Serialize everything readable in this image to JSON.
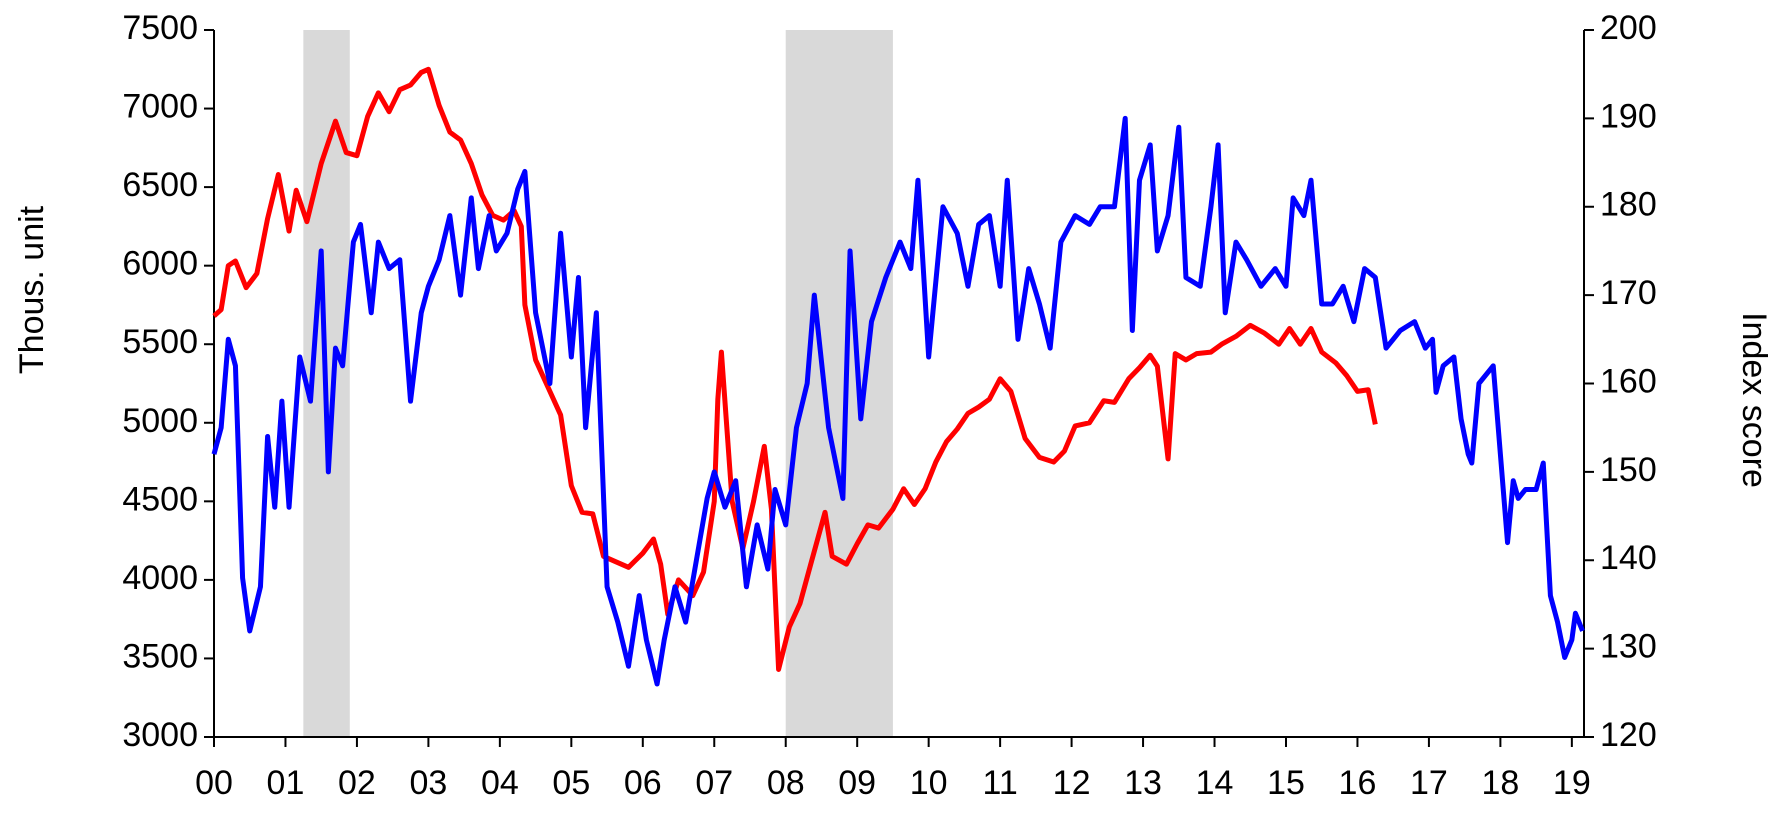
{
  "chart_data": {
    "type": "line",
    "ylabel": "Thous. unit",
    "y2label": "Index score",
    "xlim": [
      0,
      19.17
    ],
    "xticks": [
      {
        "value": 0,
        "label": "00"
      },
      {
        "value": 1,
        "label": "01"
      },
      {
        "value": 2,
        "label": "02"
      },
      {
        "value": 3,
        "label": "03"
      },
      {
        "value": 4,
        "label": "04"
      },
      {
        "value": 5,
        "label": "05"
      },
      {
        "value": 6,
        "label": "06"
      },
      {
        "value": 7,
        "label": "07"
      },
      {
        "value": 8,
        "label": "08"
      },
      {
        "value": 9,
        "label": "09"
      },
      {
        "value": 10,
        "label": "10"
      },
      {
        "value": 11,
        "label": "11"
      },
      {
        "value": 12,
        "label": "12"
      },
      {
        "value": 13,
        "label": "13"
      },
      {
        "value": 14,
        "label": "14"
      },
      {
        "value": 15,
        "label": "15"
      },
      {
        "value": 16,
        "label": "16"
      },
      {
        "value": 17,
        "label": "17"
      },
      {
        "value": 18,
        "label": "18"
      },
      {
        "value": 19,
        "label": "19"
      }
    ],
    "ylim": [
      3000,
      7500
    ],
    "yticks": [
      3000,
      3500,
      4000,
      4500,
      5000,
      5500,
      6000,
      6500,
      7000,
      7500
    ],
    "y2lim": [
      120,
      200
    ],
    "y2ticks": [
      120,
      130,
      140,
      150,
      160,
      170,
      180,
      190,
      200
    ],
    "bands": [
      [
        1.25,
        1.9
      ],
      [
        8.0,
        9.5
      ]
    ],
    "band_color": "#d9d9d9",
    "series": [
      {
        "color": "#ff0000",
        "axis": "y",
        "x": [
          0,
          0.1,
          0.2,
          0.3,
          0.45,
          0.6,
          0.75,
          0.9,
          1.05,
          1.15,
          1.3,
          1.5,
          1.7,
          1.85,
          2.0,
          2.15,
          2.3,
          2.45,
          2.6,
          2.75,
          2.9,
          3.0,
          3.15,
          3.3,
          3.45,
          3.6,
          3.75,
          3.9,
          4.05,
          4.2,
          4.3,
          4.35,
          4.5,
          4.7,
          4.85,
          5.0,
          5.15,
          5.3,
          5.45,
          5.6,
          5.8,
          6.0,
          6.15,
          6.25,
          6.35,
          6.5,
          6.7,
          6.85,
          7.0,
          7.05,
          7.1,
          7.25,
          7.4,
          7.55,
          7.7,
          7.8,
          7.9,
          8.05,
          8.2,
          8.35,
          8.55,
          8.65,
          8.85,
          9.0,
          9.15,
          9.3,
          9.5,
          9.65,
          9.8,
          9.95,
          10.1,
          10.25,
          10.4,
          10.55,
          10.7,
          10.85,
          11.0,
          11.15,
          11.35,
          11.55,
          11.75,
          11.9,
          12.05,
          12.25,
          12.45,
          12.6,
          12.8,
          12.95,
          13.1,
          13.2,
          13.35,
          13.45,
          13.6,
          13.75,
          13.95,
          14.1,
          14.3,
          14.5,
          14.7,
          14.9,
          15.05,
          15.2,
          15.35,
          15.5,
          15.7,
          15.85,
          16.0,
          16.15,
          16.25
        ],
        "values": [
          5680,
          5720,
          6000,
          6030,
          5860,
          5950,
          6300,
          6580,
          6220,
          6480,
          6280,
          6650,
          6920,
          6720,
          6700,
          6950,
          7100,
          6980,
          7120,
          7150,
          7230,
          7250,
          7020,
          6850,
          6800,
          6650,
          6450,
          6320,
          6290,
          6350,
          6250,
          5750,
          5400,
          5200,
          5050,
          4600,
          4430,
          4420,
          4150,
          4120,
          4080,
          4170,
          4260,
          4100,
          3780,
          4000,
          3900,
          4050,
          4500,
          5150,
          5450,
          4500,
          4200,
          4500,
          4850,
          4450,
          3430,
          3700,
          3850,
          4100,
          4430,
          4150,
          4100,
          4230,
          4350,
          4330,
          4450,
          4580,
          4480,
          4580,
          4750,
          4880,
          4960,
          5060,
          5100,
          5150,
          5280,
          5200,
          4900,
          4780,
          4750,
          4820,
          4980,
          5000,
          5140,
          5130,
          5280,
          5350,
          5430,
          5360,
          4770,
          5440,
          5400,
          5440,
          5450,
          5500,
          5550,
          5620,
          5570,
          5500,
          5600,
          5500,
          5600,
          5450,
          5380,
          5300,
          5200,
          5210,
          4990
        ]
      },
      {
        "color": "#0000ff",
        "axis": "y2",
        "x": [
          0,
          0.1,
          0.2,
          0.3,
          0.4,
          0.5,
          0.65,
          0.75,
          0.85,
          0.95,
          1.05,
          1.2,
          1.35,
          1.5,
          1.6,
          1.7,
          1.8,
          1.95,
          2.05,
          2.2,
          2.3,
          2.45,
          2.6,
          2.75,
          2.9,
          3.0,
          3.15,
          3.3,
          3.45,
          3.6,
          3.7,
          3.85,
          3.95,
          4.1,
          4.25,
          4.35,
          4.5,
          4.7,
          4.85,
          5.0,
          5.1,
          5.2,
          5.35,
          5.5,
          5.65,
          5.8,
          5.95,
          6.05,
          6.2,
          6.3,
          6.45,
          6.6,
          6.75,
          6.9,
          7.0,
          7.15,
          7.3,
          7.45,
          7.6,
          7.75,
          7.85,
          8.0,
          8.15,
          8.3,
          8.4,
          8.6,
          8.8,
          8.9,
          9.05,
          9.2,
          9.4,
          9.6,
          9.75,
          9.85,
          10.0,
          10.2,
          10.4,
          10.55,
          10.7,
          10.85,
          11.0,
          11.1,
          11.25,
          11.4,
          11.55,
          11.7,
          11.85,
          12.05,
          12.25,
          12.4,
          12.6,
          12.75,
          12.85,
          12.95,
          13.1,
          13.2,
          13.35,
          13.5,
          13.6,
          13.8,
          13.95,
          14.05,
          14.15,
          14.3,
          14.45,
          14.65,
          14.85,
          15.0,
          15.1,
          15.25,
          15.35,
          15.5,
          15.65,
          15.8,
          15.95,
          16.1,
          16.25,
          16.4,
          16.6,
          16.8,
          16.95,
          17.05,
          17.1,
          17.2,
          17.35,
          17.45,
          17.55,
          17.6,
          17.7,
          17.9,
          18.0,
          18.1,
          18.18,
          18.25,
          18.35,
          18.5,
          18.6,
          18.7,
          18.8,
          18.9,
          19.0,
          19.05,
          19.15
        ],
        "values": [
          152,
          155,
          165,
          162,
          138,
          132,
          137,
          154,
          146,
          158,
          146,
          163,
          158,
          175,
          150,
          164,
          162,
          176,
          178,
          168,
          176,
          173,
          174,
          158,
          168,
          171,
          174,
          179,
          170,
          181,
          173,
          179,
          175,
          177,
          182,
          184,
          168,
          160,
          177,
          163,
          172,
          155,
          168,
          137,
          133,
          128,
          136,
          131,
          126,
          131,
          137,
          133,
          140,
          147,
          150,
          146,
          149,
          137,
          144,
          139,
          148,
          144,
          155,
          160,
          170,
          155,
          147,
          175,
          156,
          167,
          172,
          176,
          173,
          183,
          163,
          180,
          177,
          171,
          178,
          179,
          171,
          183,
          165,
          173,
          169,
          164,
          176,
          179,
          178,
          180,
          180,
          190,
          166,
          183,
          187,
          175,
          179,
          189,
          172,
          171,
          180,
          187,
          168,
          176,
          174,
          171,
          173,
          171,
          181,
          179,
          183,
          169,
          169,
          171,
          167,
          173,
          172,
          164,
          166,
          167,
          164,
          165,
          159,
          162,
          163,
          156,
          152,
          151,
          160,
          162,
          152,
          142,
          149,
          147,
          148,
          148,
          151,
          136,
          133,
          129,
          131,
          134,
          132
        ]
      }
    ]
  }
}
